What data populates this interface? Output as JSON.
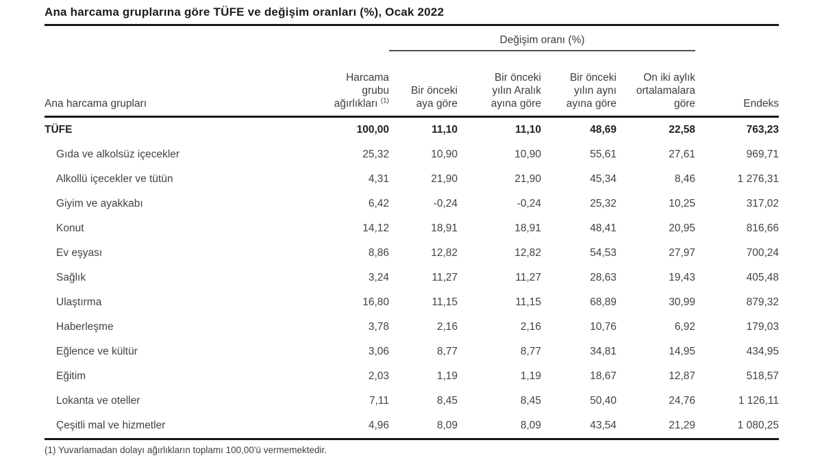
{
  "title": "Ana harcama gruplarına göre TÜFE ve değişim oranları (%), Ocak 2022",
  "table": {
    "group_header": "Değişim oranı (%)",
    "label_header": "Ana harcama grupları",
    "headers": [
      {
        "text": "Harcama\ngrubu\nağırlıkları",
        "sup": "(1)"
      },
      {
        "text": "Bir önceki\naya göre"
      },
      {
        "text": "Bir önceki\nyılın Aralık\nayına göre"
      },
      {
        "text": "Bir önceki\nyılın aynı\nayına göre"
      },
      {
        "text": "On iki aylık\nortalamalara\ngöre"
      },
      {
        "text": "Endeks"
      }
    ],
    "rows": [
      {
        "label": "TÜFE",
        "bold": true,
        "values": [
          "100,00",
          "11,10",
          "11,10",
          "48,69",
          "22,58",
          "763,23"
        ]
      },
      {
        "label": "Gıda ve alkolsüz içecekler",
        "values": [
          "25,32",
          "10,90",
          "10,90",
          "55,61",
          "27,61",
          "969,71"
        ]
      },
      {
        "label": "Alkollü içecekler ve tütün",
        "values": [
          "4,31",
          "21,90",
          "21,90",
          "45,34",
          "8,46",
          "1 276,31"
        ]
      },
      {
        "label": "Giyim ve ayakkabı",
        "values": [
          "6,42",
          "-0,24",
          "-0,24",
          "25,32",
          "10,25",
          "317,02"
        ]
      },
      {
        "label": "Konut",
        "values": [
          "14,12",
          "18,91",
          "18,91",
          "48,41",
          "20,95",
          "816,66"
        ]
      },
      {
        "label": "Ev eşyası",
        "values": [
          "8,86",
          "12,82",
          "12,82",
          "54,53",
          "27,97",
          "700,24"
        ]
      },
      {
        "label": "Sağlık",
        "values": [
          "3,24",
          "11,27",
          "11,27",
          "28,63",
          "19,43",
          "405,48"
        ]
      },
      {
        "label": "Ulaştırma",
        "values": [
          "16,80",
          "11,15",
          "11,15",
          "68,89",
          "30,99",
          "879,32"
        ]
      },
      {
        "label": "Haberleşme",
        "values": [
          "3,78",
          "2,16",
          "2,16",
          "10,76",
          "6,92",
          "179,03"
        ]
      },
      {
        "label": "Eğlence ve kültür",
        "values": [
          "3,06",
          "8,77",
          "8,77",
          "34,81",
          "14,95",
          "434,95"
        ]
      },
      {
        "label": "Eğitim",
        "values": [
          "2,03",
          "1,19",
          "1,19",
          "18,67",
          "12,87",
          "518,57"
        ]
      },
      {
        "label": "Lokanta ve oteller",
        "values": [
          "7,11",
          "8,45",
          "8,45",
          "50,40",
          "24,76",
          "1 126,11"
        ]
      },
      {
        "label": "Çeşitli mal ve hizmetler",
        "values": [
          "4,96",
          "8,09",
          "8,09",
          "43,54",
          "21,29",
          "1 080,25"
        ]
      }
    ],
    "footnote": "(1) Yuvarlamadan dolayı ağırlıkların toplamı 100,00'ü vermemektedir."
  },
  "chart_data": {
    "type": "table",
    "title": "Ana harcama gruplarına göre TÜFE ve değişim oranları (%), Ocak 2022",
    "column_group": "Değişim oranı (%)",
    "columns": [
      "Ana harcama grupları",
      "Harcama grubu ağırlıkları (1)",
      "Bir önceki aya göre",
      "Bir önceki yılın Aralık ayına göre",
      "Bir önceki yılın aynı ayına göre",
      "On iki aylık ortalamalara göre",
      "Endeks"
    ],
    "rows": [
      [
        "TÜFE",
        "100,00",
        "11,10",
        "11,10",
        "48,69",
        "22,58",
        "763,23"
      ],
      [
        "Gıda ve alkolsüz içecekler",
        "25,32",
        "10,90",
        "10,90",
        "55,61",
        "27,61",
        "969,71"
      ],
      [
        "Alkollü içecekler ve tütün",
        "4,31",
        "21,90",
        "21,90",
        "45,34",
        "8,46",
        "1 276,31"
      ],
      [
        "Giyim ve ayakkabı",
        "6,42",
        "-0,24",
        "-0,24",
        "25,32",
        "10,25",
        "317,02"
      ],
      [
        "Konut",
        "14,12",
        "18,91",
        "18,91",
        "48,41",
        "20,95",
        "816,66"
      ],
      [
        "Ev eşyası",
        "8,86",
        "12,82",
        "12,82",
        "54,53",
        "27,97",
        "700,24"
      ],
      [
        "Sağlık",
        "3,24",
        "11,27",
        "11,27",
        "28,63",
        "19,43",
        "405,48"
      ],
      [
        "Ulaştırma",
        "16,80",
        "11,15",
        "11,15",
        "68,89",
        "30,99",
        "879,32"
      ],
      [
        "Haberleşme",
        "3,78",
        "2,16",
        "2,16",
        "10,76",
        "6,92",
        "179,03"
      ],
      [
        "Eğlence ve kültür",
        "3,06",
        "8,77",
        "8,77",
        "34,81",
        "14,95",
        "434,95"
      ],
      [
        "Eğitim",
        "2,03",
        "1,19",
        "1,19",
        "18,67",
        "12,87",
        "518,57"
      ],
      [
        "Lokanta ve oteller",
        "7,11",
        "8,45",
        "8,45",
        "50,40",
        "24,76",
        "1 126,11"
      ],
      [
        "Çeşitli mal ve hizmetler",
        "4,96",
        "8,09",
        "8,09",
        "43,54",
        "21,29",
        "1 080,25"
      ]
    ],
    "footnote": "(1) Yuvarlamadan dolayı ağırlıkların toplamı 100,00'ü vermemektedir.",
    "colors": {
      "text": "#424242",
      "rule": "#161616",
      "background": "#ffffff"
    }
  }
}
